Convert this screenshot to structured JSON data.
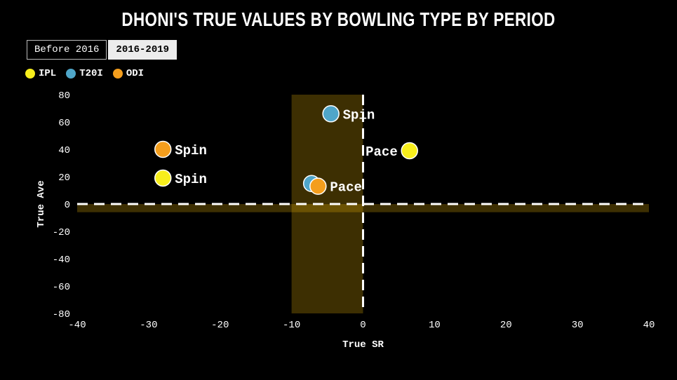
{
  "header": {
    "title": "DHONI'S TRUE VALUES BY BOWLING TYPE BY PERIOD"
  },
  "tabs": [
    {
      "label": "Before 2016",
      "active": false
    },
    {
      "label": "2016-2019",
      "active": true
    }
  ],
  "legend": {
    "items": [
      {
        "label": "IPL",
        "color": "#f7ee1c"
      },
      {
        "label": "T20I",
        "color": "#4fa6c9"
      },
      {
        "label": "ODI",
        "color": "#f49e1d"
      }
    ]
  },
  "chart_data": {
    "type": "scatter",
    "title": "DHONI'S TRUE VALUES BY BOWLING TYPE BY PERIOD",
    "xlabel": "True SR",
    "ylabel": "True Ave",
    "xlim": [
      -40,
      40
    ],
    "ylim": [
      -80,
      80
    ],
    "x_ticks": [
      -40,
      -30,
      -20,
      -10,
      0,
      10,
      20,
      30,
      40
    ],
    "y_ticks": [
      80,
      60,
      40,
      20,
      0,
      -20,
      -40,
      -60,
      -80
    ],
    "grid": false,
    "reference_lines": {
      "x_zero": 0,
      "y_zero": 0
    },
    "shaded_bands": {
      "vertical": {
        "x0": -10,
        "x1": 0
      },
      "horizontal": {
        "y0": -6,
        "y1": 0
      },
      "color": "rgba(255, 196, 10, 0.24)"
    },
    "series_colors": {
      "IPL": "#f7ee1c",
      "T20I": "#4fa6c9",
      "ODI": "#f49e1d"
    },
    "points": [
      {
        "series": "T20I",
        "bowling": "Spin",
        "x": -4.5,
        "y": 66,
        "label": "Spin",
        "label_side": "right"
      },
      {
        "series": "ODI",
        "bowling": "Spin",
        "x": -28,
        "y": 40,
        "label": "Spin",
        "label_side": "right"
      },
      {
        "series": "IPL",
        "bowling": "Spin",
        "x": -28,
        "y": 19,
        "label": "Spin",
        "label_side": "right"
      },
      {
        "series": "IPL",
        "bowling": "Pace",
        "x": 6.5,
        "y": 39,
        "label": "Pace",
        "label_side": "left"
      },
      {
        "series": "T20I",
        "bowling": "Pace",
        "x": -7.2,
        "y": 15,
        "label": "",
        "label_side": "right"
      },
      {
        "series": "ODI",
        "bowling": "Pace",
        "x": -6.3,
        "y": 13,
        "label": "Pace",
        "label_side": "right"
      }
    ]
  }
}
